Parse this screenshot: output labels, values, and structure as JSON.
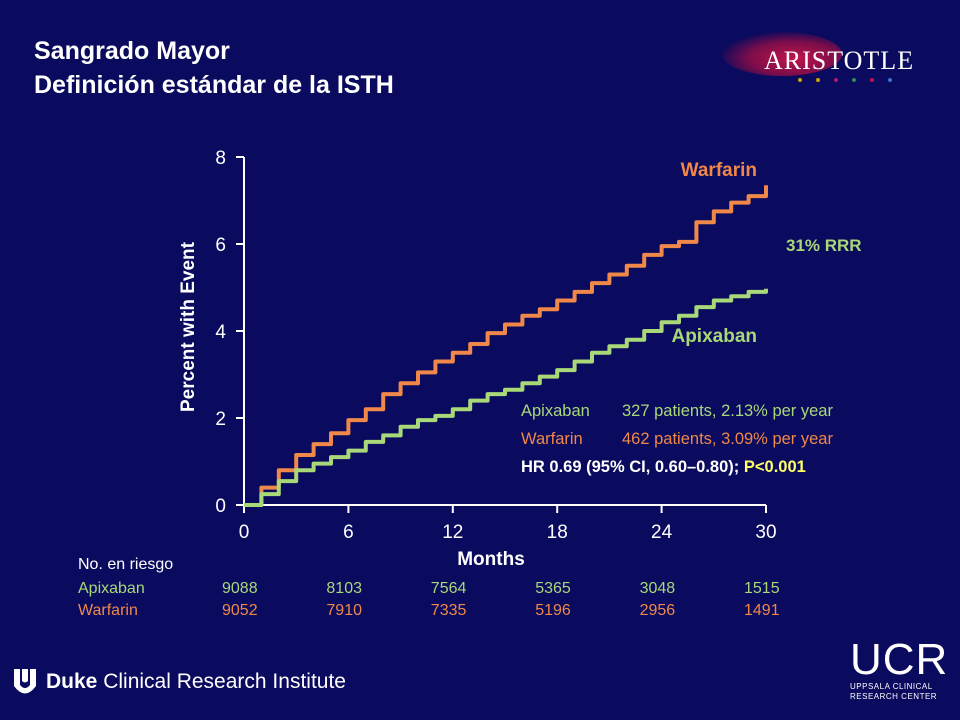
{
  "slide": {
    "title_line1": "Sangrado Mayor",
    "title_line2": "Definición estándar de la ISTH",
    "logo_text": "ARISTOTLE",
    "logo_dot_colors": [
      "#c8a800",
      "#c8a800",
      "#b0186a",
      "#2e8b57",
      "#c3144c",
      "#3a6fd8"
    ],
    "footer_left": {
      "bold": "Duke",
      "rest": " Clinical Research Institute"
    },
    "footer_right": {
      "big": "UCR",
      "small_line1": "UPPSALA CLINICAL",
      "small_line2": "RESEARCH CENTER"
    }
  },
  "colors": {
    "background": "#0a0a5e",
    "warfarin": "#f0884a",
    "apixaban": "#a8d878",
    "p_value": "#ffff66",
    "axis": "#ffffff"
  },
  "chart_data": {
    "type": "line",
    "xlabel": "Months",
    "ylabel": "Percent with Event",
    "xlim": [
      0,
      30
    ],
    "ylim": [
      0,
      8
    ],
    "xticks": [
      0,
      6,
      12,
      18,
      24,
      30
    ],
    "yticks": [
      0,
      2,
      4,
      6,
      8
    ],
    "series": [
      {
        "name": "Warfarin",
        "x": [
          0,
          1,
          2,
          3,
          4,
          5,
          6,
          7,
          8,
          9,
          10,
          11,
          12,
          13,
          14,
          15,
          16,
          17,
          18,
          19,
          20,
          21,
          22,
          23,
          24,
          25,
          26,
          27,
          28,
          29,
          30
        ],
        "y": [
          0,
          0.4,
          0.8,
          1.15,
          1.4,
          1.65,
          1.95,
          2.2,
          2.55,
          2.8,
          3.05,
          3.3,
          3.5,
          3.7,
          3.95,
          4.15,
          4.35,
          4.5,
          4.7,
          4.9,
          5.1,
          5.3,
          5.5,
          5.75,
          5.95,
          6.05,
          6.5,
          6.75,
          6.95,
          7.1,
          7.35
        ]
      },
      {
        "name": "Apixaban",
        "x": [
          0,
          1,
          2,
          3,
          4,
          5,
          6,
          7,
          8,
          9,
          10,
          11,
          12,
          13,
          14,
          15,
          16,
          17,
          18,
          19,
          20,
          21,
          22,
          23,
          24,
          25,
          26,
          27,
          28,
          29,
          30
        ],
        "y": [
          0,
          0.25,
          0.55,
          0.8,
          0.95,
          1.1,
          1.25,
          1.45,
          1.6,
          1.8,
          1.95,
          2.05,
          2.2,
          2.4,
          2.55,
          2.65,
          2.8,
          2.95,
          3.1,
          3.3,
          3.5,
          3.65,
          3.8,
          4.0,
          4.2,
          4.35,
          4.55,
          4.7,
          4.8,
          4.9,
          4.97
        ]
      }
    ],
    "series_labels": {
      "warfarin": "Warfarin",
      "apixaban": "Apixaban"
    },
    "annotations": {
      "rrr": "31% RRR",
      "apixaban_name": "Apixaban",
      "apixaban_stats": "327 patients, 2.13% per year",
      "warfarin_name": "Warfarin",
      "warfarin_stats": "462 patients, 3.09% per year",
      "hr": "HR 0.69 (95% CI, 0.60–0.80); ",
      "p": "P<0.001"
    },
    "at_risk": {
      "header": "No. en riesgo",
      "rows": [
        {
          "label": "Apixaban",
          "values": [
            "9088",
            "8103",
            "7564",
            "5365",
            "3048",
            "1515"
          ]
        },
        {
          "label": "Warfarin",
          "values": [
            "9052",
            "7910",
            "7335",
            "5196",
            "2956",
            "1491"
          ]
        }
      ]
    }
  }
}
